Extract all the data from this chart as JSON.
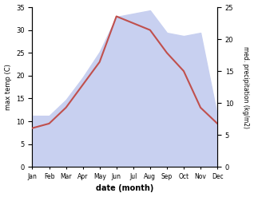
{
  "months": [
    "Jan",
    "Feb",
    "Mar",
    "Apr",
    "May",
    "Jun",
    "Jul",
    "Aug",
    "Sep",
    "Oct",
    "Nov",
    "Dec"
  ],
  "temp": [
    8.5,
    9.5,
    13.0,
    18.0,
    23.0,
    33.0,
    31.5,
    30.0,
    25.0,
    21.0,
    13.0,
    9.5
  ],
  "precip": [
    8.0,
    8.0,
    10.5,
    14.0,
    18.0,
    23.5,
    24.0,
    24.5,
    21.0,
    20.5,
    21.0,
    8.0
  ],
  "temp_color": "#c0504d",
  "precip_fill_color": "#c8d0f0",
  "temp_ylim": [
    0,
    35
  ],
  "precip_ylim": [
    0,
    25
  ],
  "temp_yticks": [
    0,
    5,
    10,
    15,
    20,
    25,
    30,
    35
  ],
  "precip_yticks": [
    0,
    5,
    10,
    15,
    20,
    25
  ],
  "xlabel": "date (month)",
  "ylabel_left": "max temp (C)",
  "ylabel_right": "med. precipitation (kg/m2)",
  "bg_color": "#ffffff"
}
